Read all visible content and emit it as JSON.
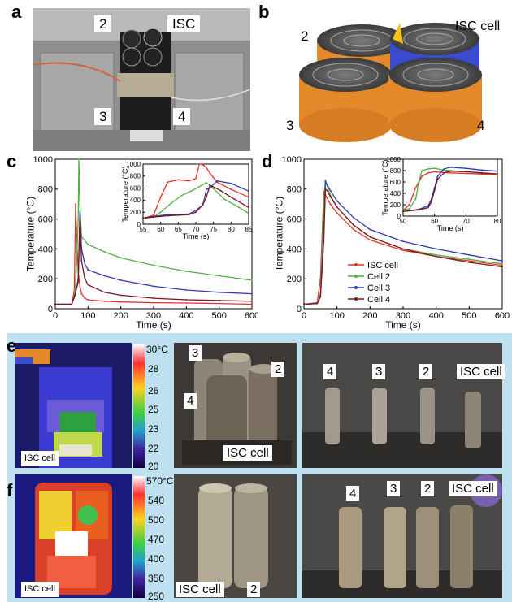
{
  "panels": {
    "a": "a",
    "b": "b",
    "c": "c",
    "d": "d",
    "e": "e",
    "f": "f"
  },
  "a_labels": {
    "l2": "2",
    "isc": "ISC",
    "l3": "3",
    "l4": "4"
  },
  "b_labels": {
    "l2": "2",
    "isc": "ISC cell",
    "l3": "3",
    "l4": "4"
  },
  "e": {
    "scale_top": "30°C",
    "scale": [
      "28",
      "26",
      "25",
      "23",
      "22",
      "20"
    ],
    "isc": "ISC cell",
    "mid": {
      "l3": "3",
      "l2": "2",
      "l4": "4",
      "isc": "ISC cell"
    },
    "right": {
      "l4": "4",
      "l3": "3",
      "l2": "2",
      "isc": "ISC cell"
    }
  },
  "f": {
    "scale_top": "570°C",
    "scale": [
      "540",
      "500",
      "470",
      "400",
      "350",
      "250"
    ],
    "isc": "ISC cell",
    "mid": {
      "isc": "ISC cell",
      "l2": "2"
    },
    "right": {
      "l4": "4",
      "l3": "3",
      "l2": "2",
      "isc": "ISC cell"
    }
  },
  "colors": {
    "isc": "#e8302a",
    "cell2": "#4db33d",
    "cell3": "#2e3bb0",
    "cell4": "#7a1520",
    "orange": "#e58a2a",
    "blue": "#3a4bd0"
  },
  "chart_data": [
    {
      "type": "line",
      "id": "c",
      "xlabel": "Time (s)",
      "ylabel": "Temperature (°C)",
      "xlim": [
        0,
        600
      ],
      "ylim": [
        0,
        1000
      ],
      "xticks": [
        0,
        100,
        200,
        300,
        400,
        500,
        600
      ],
      "yticks": [
        0,
        200,
        400,
        600,
        800,
        1000
      ],
      "series": [
        {
          "name": "ISC cell",
          "color": "#e8302a",
          "x": [
            0,
            50,
            58,
            62,
            66,
            70,
            75,
            80,
            90,
            100,
            150,
            200,
            300,
            400,
            500,
            600
          ],
          "y": [
            30,
            30,
            120,
            700,
            450,
            250,
            150,
            100,
            70,
            60,
            50,
            45,
            40,
            38,
            35,
            30
          ]
        },
        {
          "name": "Cell 2",
          "color": "#4db33d",
          "x": [
            0,
            50,
            60,
            65,
            70,
            72,
            75,
            80,
            100,
            150,
            200,
            300,
            400,
            500,
            600
          ],
          "y": [
            30,
            30,
            100,
            300,
            600,
            1000,
            700,
            480,
            430,
            380,
            340,
            290,
            250,
            220,
            190
          ]
        },
        {
          "name": "Cell 3",
          "color": "#2e3bb0",
          "x": [
            0,
            50,
            60,
            70,
            75,
            80,
            90,
            100,
            150,
            200,
            300,
            400,
            500,
            600
          ],
          "y": [
            30,
            30,
            90,
            200,
            650,
            400,
            300,
            260,
            220,
            190,
            150,
            125,
            110,
            100
          ]
        },
        {
          "name": "Cell 4",
          "color": "#7a1520",
          "x": [
            0,
            50,
            60,
            70,
            75,
            80,
            90,
            100,
            150,
            200,
            300,
            400,
            500,
            600
          ],
          "y": [
            30,
            30,
            90,
            180,
            600,
            320,
            200,
            160,
            110,
            90,
            70,
            60,
            55,
            50
          ]
        }
      ],
      "inset": {
        "xlabel": "Time (s)",
        "ylabel": "Temperature (°C)",
        "xlim": [
          55,
          85
        ],
        "ylim": [
          0,
          1000
        ],
        "xticks": [
          55,
          60,
          65,
          70,
          75,
          80,
          85
        ],
        "yticks": [
          0,
          200,
          400,
          600,
          800,
          1000
        ],
        "series": [
          {
            "name": "ISC cell",
            "color": "#e8302a",
            "x": [
              55,
              58,
              60,
              62,
              65,
              68,
              70,
              71,
              72,
              73,
              74,
              76,
              80,
              85
            ],
            "y": [
              100,
              150,
              450,
              700,
              740,
              720,
              760,
              1000,
              990,
              940,
              850,
              700,
              580,
              450
            ]
          },
          {
            "name": "Cell 2",
            "color": "#4db33d",
            "x": [
              55,
              58,
              60,
              63,
              66,
              69,
              72,
              73,
              75,
              78,
              82,
              85
            ],
            "y": [
              100,
              120,
              200,
              350,
              480,
              560,
              660,
              690,
              590,
              420,
              290,
              180
            ]
          },
          {
            "name": "Cell 3",
            "color": "#2e3bb0",
            "x": [
              55,
              58,
              62,
              65,
              68,
              70,
              72,
              73,
              74,
              76,
              80,
              85
            ],
            "y": [
              100,
              130,
              160,
              150,
              170,
              230,
              320,
              580,
              600,
              720,
              680,
              550
            ]
          },
          {
            "name": "Cell 4",
            "color": "#7a1520",
            "x": [
              55,
              58,
              62,
              65,
              68,
              70,
              72,
              73,
              74,
              77,
              80,
              85
            ],
            "y": [
              100,
              120,
              140,
              150,
              160,
              200,
              330,
              450,
              650,
              560,
              450,
              280
            ]
          }
        ]
      }
    },
    {
      "type": "line",
      "id": "d",
      "xlabel": "Time (s)",
      "ylabel": "Temperature (°C)",
      "xlim": [
        0,
        600
      ],
      "ylim": [
        0,
        1000
      ],
      "xticks": [
        0,
        100,
        200,
        300,
        400,
        500,
        600
      ],
      "yticks": [
        0,
        200,
        400,
        600,
        800,
        1000
      ],
      "legend": [
        "ISC cell",
        "Cell 2",
        "Cell 3",
        "Cell 4"
      ],
      "series": [
        {
          "name": "ISC cell",
          "color": "#e8302a",
          "x": [
            0,
            40,
            50,
            60,
            65,
            70,
            80,
            100,
            150,
            200,
            300,
            400,
            500,
            600
          ],
          "y": [
            30,
            40,
            200,
            780,
            760,
            740,
            700,
            640,
            530,
            460,
            390,
            350,
            320,
            290
          ]
        },
        {
          "name": "Cell 2",
          "color": "#4db33d",
          "x": [
            0,
            40,
            50,
            60,
            65,
            70,
            80,
            100,
            150,
            200,
            300,
            400,
            500,
            600
          ],
          "y": [
            30,
            35,
            100,
            700,
            860,
            820,
            760,
            680,
            560,
            480,
            400,
            360,
            330,
            300
          ]
        },
        {
          "name": "Cell 3",
          "color": "#2e3bb0",
          "x": [
            0,
            40,
            50,
            60,
            65,
            70,
            80,
            100,
            150,
            200,
            300,
            400,
            500,
            600
          ],
          "y": [
            30,
            35,
            80,
            500,
            850,
            830,
            790,
            720,
            610,
            530,
            450,
            400,
            360,
            320
          ]
        },
        {
          "name": "Cell 4",
          "color": "#7a1520",
          "x": [
            0,
            40,
            50,
            60,
            65,
            70,
            80,
            100,
            150,
            200,
            300,
            400,
            500,
            600
          ],
          "y": [
            30,
            35,
            80,
            450,
            800,
            790,
            750,
            680,
            560,
            480,
            400,
            350,
            310,
            280
          ]
        }
      ],
      "inset": {
        "xlabel": "Time (s)",
        "ylabel": "Temperature (°C)",
        "xlim": [
          50,
          80
        ],
        "ylim": [
          0,
          1000
        ],
        "xticks": [
          50,
          60,
          70,
          80
        ],
        "yticks": [
          0,
          200,
          400,
          600,
          800,
          1000
        ],
        "series": [
          {
            "name": "ISC cell",
            "color": "#e8302a",
            "x": [
              50,
              52,
              54,
              56,
              58,
              60,
              62,
              65,
              70,
              75,
              80
            ],
            "y": [
              100,
              200,
              500,
              700,
              760,
              780,
              770,
              760,
              750,
              740,
              720
            ]
          },
          {
            "name": "Cell 2",
            "color": "#4db33d",
            "x": [
              50,
              52,
              54,
              55,
              56,
              58,
              60,
              62,
              65,
              70,
              75,
              80
            ],
            "y": [
              100,
              130,
              300,
              600,
              800,
              830,
              840,
              820,
              800,
              780,
              760,
              740
            ]
          },
          {
            "name": "Cell 3",
            "color": "#2e3bb0",
            "x": [
              50,
              55,
              58,
              59,
              60,
              61,
              63,
              65,
              70,
              75,
              80
            ],
            "y": [
              80,
              120,
              180,
              300,
              500,
              700,
              830,
              860,
              840,
              810,
              790
            ]
          },
          {
            "name": "Cell 4",
            "color": "#7a1520",
            "x": [
              50,
              55,
              58,
              59,
              60,
              61,
              63,
              65,
              70,
              75,
              80
            ],
            "y": [
              80,
              110,
              150,
              250,
              450,
              650,
              760,
              790,
              780,
              760,
              740
            ]
          }
        ]
      }
    }
  ]
}
